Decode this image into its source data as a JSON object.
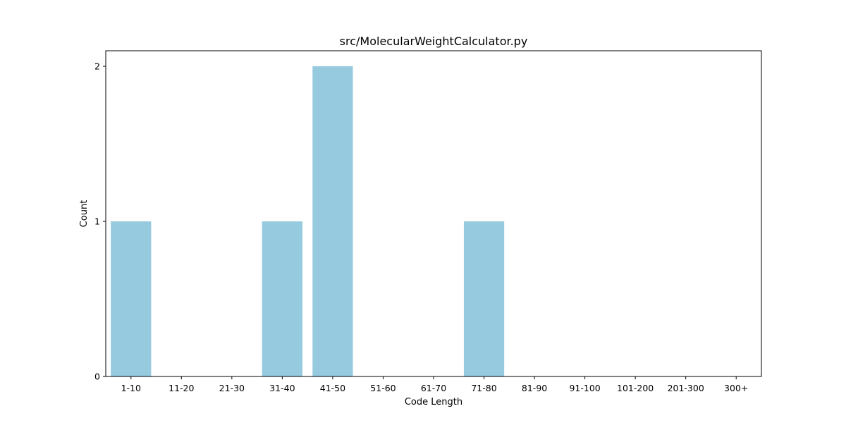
{
  "chart_data": {
    "type": "bar",
    "title": "src/MolecularWeightCalculator.py",
    "xlabel": "Code Length",
    "ylabel": "Count",
    "categories": [
      "1-10",
      "11-20",
      "21-30",
      "31-40",
      "41-50",
      "51-60",
      "61-70",
      "71-80",
      "81-90",
      "91-100",
      "101-200",
      "201-300",
      "300+"
    ],
    "values": [
      1,
      0,
      0,
      1,
      2,
      0,
      0,
      1,
      0,
      0,
      0,
      0,
      0
    ],
    "ylim": [
      0,
      2.1
    ],
    "yticks": [
      0,
      1,
      2
    ],
    "grid": false,
    "legend": "none",
    "bar_color": "#96cadf"
  }
}
